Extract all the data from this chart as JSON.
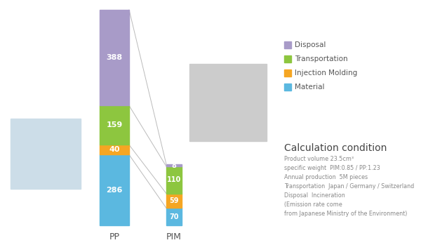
{
  "pp_values": [
    286,
    40,
    159,
    388
  ],
  "pim_values": [
    70,
    59,
    110,
    8
  ],
  "colors": [
    "#5BB8E0",
    "#F5A623",
    "#8DC63F",
    "#A89BC8"
  ],
  "pp_label": "PP",
  "pim_label": "PIM",
  "legend_labels": [
    "Material",
    "Injection Molding",
    "Transportation",
    "Disposal"
  ],
  "calc_title": "Calculation condition",
  "calc_lines": [
    "Product volume 23.5cm³",
    "specific weight  PIM:0.85 / PP:1.23",
    "Annual production  5M pieces",
    "Transportation  Japan / Germany / Switzerland",
    "Disposal  Incineration",
    "(Emission rate come",
    "from Japanese Ministry of the Environment)"
  ],
  "bg_color": "#FFFFFF",
  "text_color_dark": "#555555",
  "text_color_light": "#888888",
  "label_color_pp": "#888888",
  "label_color_pim": "#888888"
}
